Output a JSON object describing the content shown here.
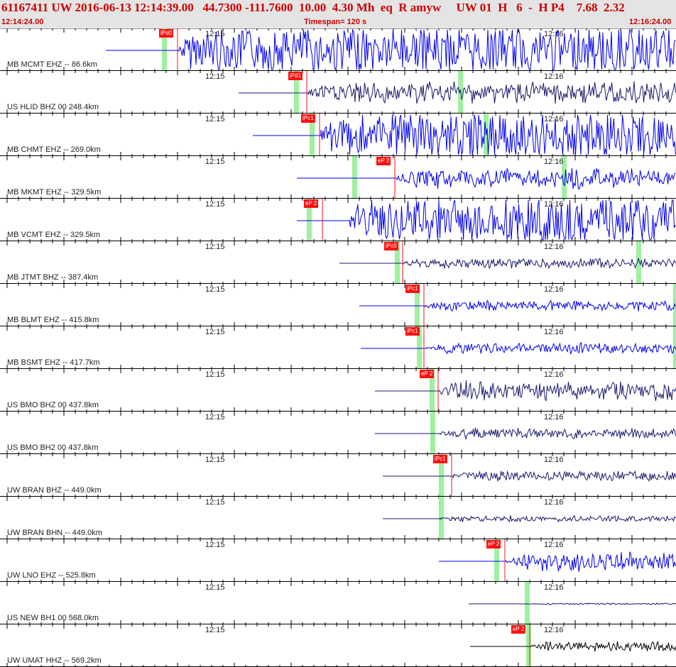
{
  "header": {
    "title": "61167411 UW 2016-06-13 12:14:39.00   44.7300 -111.7600  10.00  4.30 Mh  eq  R amyw     UW 01  H   6  -  H P4    7.68  2.32",
    "start_time": "12:14:24.00",
    "timespan": "Timespan= 120 s",
    "end_time": "12:16:24.00"
  },
  "axis": {
    "minute_labels": [
      "12:15",
      "12:16"
    ]
  },
  "colors": {
    "trace_blue": "#0000ee",
    "trace_navy": "#1a1a6e",
    "trace_black": "#000000",
    "pick_red": "#ff1111",
    "theory_green": "#9ff09f"
  },
  "channels": [
    {
      "label": "MB MCMT EHZ -- 86.6km",
      "pick_label": "iPd0",
      "color": "#0000ee",
      "amp": "clipped"
    },
    {
      "label": "US HLID BHZ 00 248.4km",
      "pick_label": "iPd1",
      "color": "#1a1a6e",
      "amp": "medium"
    },
    {
      "label": "MB CHMT EHZ -- 269.0km",
      "pick_label": "iPc1",
      "color": "#0000ee",
      "amp": "clipped"
    },
    {
      "label": "MB MKMT EHZ -- 329.5km",
      "pick_label": "eP 2",
      "color": "#0000ee",
      "amp": "medium"
    },
    {
      "label": "MB VCMT EHZ -- 329.5km",
      "pick_label": "eP 2",
      "color": "#0000ee",
      "amp": "clipped"
    },
    {
      "label": "MB JTMT BHZ -- 387.4km",
      "pick_label": "iPc0",
      "color": "#1a1a6e",
      "amp": "small"
    },
    {
      "label": "MB BLMT EHZ -- 415.8km",
      "pick_label": "iPc1",
      "color": "#0000ee",
      "amp": "small"
    },
    {
      "label": "MB BSMT EHZ -- 417.7km",
      "pick_label": "iPc1",
      "color": "#0000ee",
      "amp": "small"
    },
    {
      "label": "US BMO BHZ 00 437.8km",
      "pick_label": "eP 2",
      "color": "#1a1a6e",
      "amp": "medium"
    },
    {
      "label": "US BMO BH2 00 437.8km",
      "pick_label": "",
      "color": "#1a1a6e",
      "amp": "small"
    },
    {
      "label": "UW BRAN BHZ -- 449.0km",
      "pick_label": "iPc1",
      "color": "#1a1a6e",
      "amp": "small"
    },
    {
      "label": "UW BRAN BHN -- 449.0km",
      "pick_label": "",
      "color": "#1a1a6e",
      "amp": "tiny"
    },
    {
      "label": "UW LNO EHZ -- 525.8km",
      "pick_label": "eP 2",
      "color": "#0000ee",
      "amp": "medium"
    },
    {
      "label": "US NEW BH1 00 568.0km",
      "pick_label": "",
      "color": "#1a1a6e",
      "amp": "flat"
    },
    {
      "label": "UW UMAT HHZ -- 569.2km",
      "pick_label": "eP 2",
      "color": "#000000",
      "amp": "small"
    }
  ]
}
